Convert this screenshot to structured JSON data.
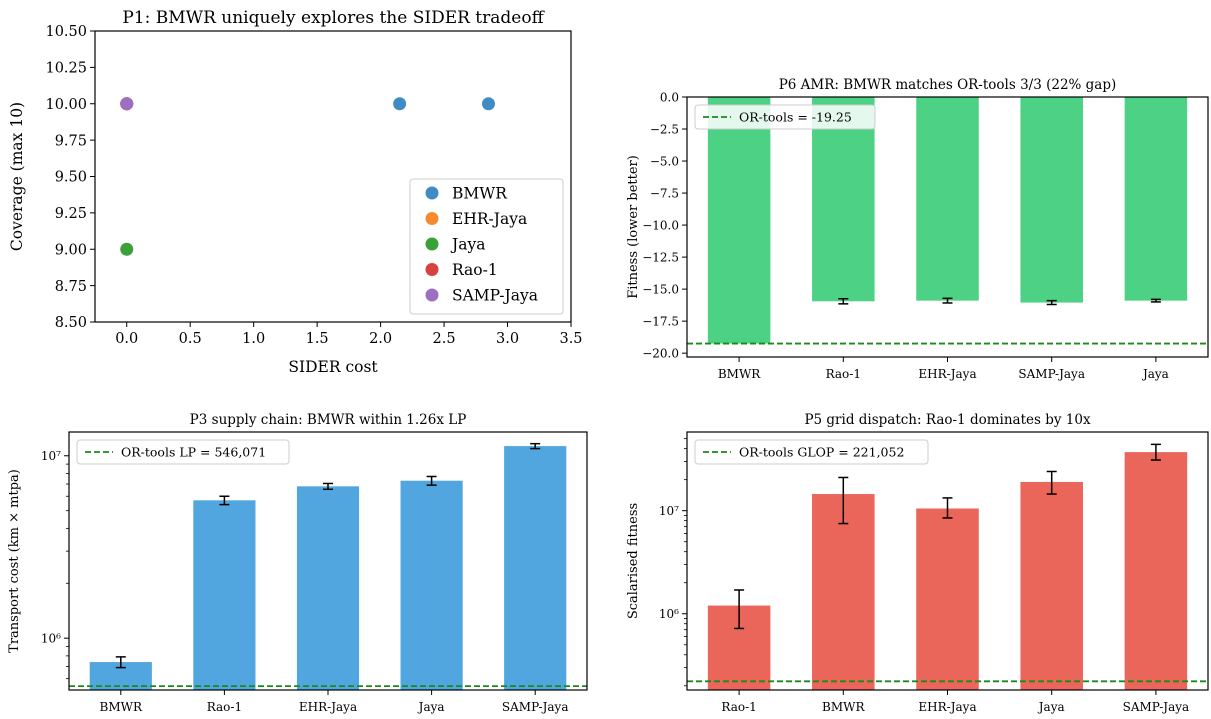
{
  "chart_data": [
    {
      "id": "p1",
      "type": "scatter",
      "title": "P1: BMWR uniquely explores the SIDER tradeoff",
      "xlabel": "SIDER cost",
      "ylabel": "Coverage (max 10)",
      "xlim": [
        -0.25,
        3.5
      ],
      "ylim": [
        8.5,
        10.5
      ],
      "xticks": [
        0.0,
        0.5,
        1.0,
        1.5,
        2.0,
        2.5,
        3.0,
        3.5
      ],
      "xtick_labels": [
        "0.0",
        "0.5",
        "1.0",
        "1.5",
        "2.0",
        "2.5",
        "3.0",
        "3.5"
      ],
      "yticks": [
        8.5,
        8.75,
        9.0,
        9.25,
        9.5,
        9.75,
        10.0,
        10.25,
        10.5
      ],
      "ytick_labels": [
        "8.50",
        "8.75",
        "9.00",
        "9.25",
        "9.50",
        "9.75",
        "10.00",
        "10.25",
        "10.50"
      ],
      "legend_position": "lower-right",
      "series": [
        {
          "name": "BMWR",
          "color": "#3f8cc4",
          "points": [
            [
              2.15,
              10.0
            ],
            [
              2.85,
              10.0
            ],
            [
              0.0,
              10.0
            ]
          ]
        },
        {
          "name": "EHR-Jaya",
          "color": "#f58b2c",
          "points": [
            [
              0.0,
              10.0
            ]
          ]
        },
        {
          "name": "Jaya",
          "color": "#3aa03a",
          "points": [
            [
              0.0,
              9.0
            ]
          ]
        },
        {
          "name": "Rao-1",
          "color": "#d9413e",
          "points": [
            [
              0.0,
              10.0
            ]
          ]
        },
        {
          "name": "SAMP-Jaya",
          "color": "#9e6fc0",
          "points": [
            [
              0.0,
              10.0
            ]
          ]
        }
      ]
    },
    {
      "id": "p6",
      "type": "bar",
      "title": "P6 AMR: BMWR matches OR-tools 3/3 (22% gap)",
      "ylabel": "Fitness (lower better)",
      "bar_color": "#4cd185",
      "categories": [
        "BMWR",
        "Rao-1",
        "EHR-Jaya",
        "SAMP-Jaya",
        "Jaya"
      ],
      "values": [
        -19.25,
        -15.95,
        -15.9,
        -16.05,
        -15.9
      ],
      "errors": [
        0.0,
        0.2,
        0.18,
        0.15,
        0.1
      ],
      "ylim": [
        -20.3,
        0
      ],
      "yticks": [
        0.0,
        -2.5,
        -5.0,
        -7.5,
        -10.0,
        -12.5,
        -15.0,
        -17.5,
        -20.0
      ],
      "ytick_labels": [
        "0.0",
        "−2.5",
        "−5.0",
        "−7.5",
        "−10.0",
        "−12.5",
        "−15.0",
        "−17.5",
        "−20.0"
      ],
      "reference": {
        "label": "OR-tools = -19.25",
        "value": -19.25,
        "color": "#1a8a1a"
      },
      "legend_position": "top-left"
    },
    {
      "id": "p3",
      "type": "bar",
      "log_scale": true,
      "title": "P3 supply chain: BMWR within 1.26x LP",
      "ylabel": "Transport cost (km × mtpa)",
      "bar_color": "#52a6df",
      "categories": [
        "BMWR",
        "Rao-1",
        "EHR-Jaya",
        "Jaya",
        "SAMP-Jaya"
      ],
      "values": [
        740000,
        5700000,
        6800000,
        7300000,
        11300000
      ],
      "errors": [
        50000,
        300000,
        250000,
        400000,
        350000
      ],
      "ylim": [
        520000,
        13500000
      ],
      "yticks": [
        1000000,
        10000000
      ],
      "ytick_labels": [
        "10⁶",
        "10⁷"
      ],
      "reference": {
        "label": "OR-tools LP = 546,071",
        "value": 546071,
        "color": "#1a8a1a"
      },
      "legend_position": "top-left"
    },
    {
      "id": "p5",
      "type": "bar",
      "log_scale": true,
      "title": "P5 grid dispatch: Rao-1 dominates by 10x",
      "ylabel": "Scalarised fitness",
      "bar_color": "#ea655a",
      "categories": [
        "Rao-1",
        "BMWR",
        "EHR-Jaya",
        "Jaya",
        "SAMP-Jaya"
      ],
      "values": [
        1200000,
        14500000,
        10500000,
        19000000,
        37000000
      ],
      "errors_low": [
        480000,
        7000000,
        2000000,
        4500000,
        6000000
      ],
      "errors_high": [
        500000,
        6500000,
        2800000,
        5000000,
        7000000
      ],
      "ylim": [
        182000,
        58000000
      ],
      "yticks": [
        1000000,
        10000000
      ],
      "ytick_labels": [
        "10⁶",
        "10⁷"
      ],
      "reference": {
        "label": "OR-tools GLOP = 221,052",
        "value": 221052,
        "color": "#1a8a1a"
      },
      "legend_position": "top-left"
    }
  ]
}
